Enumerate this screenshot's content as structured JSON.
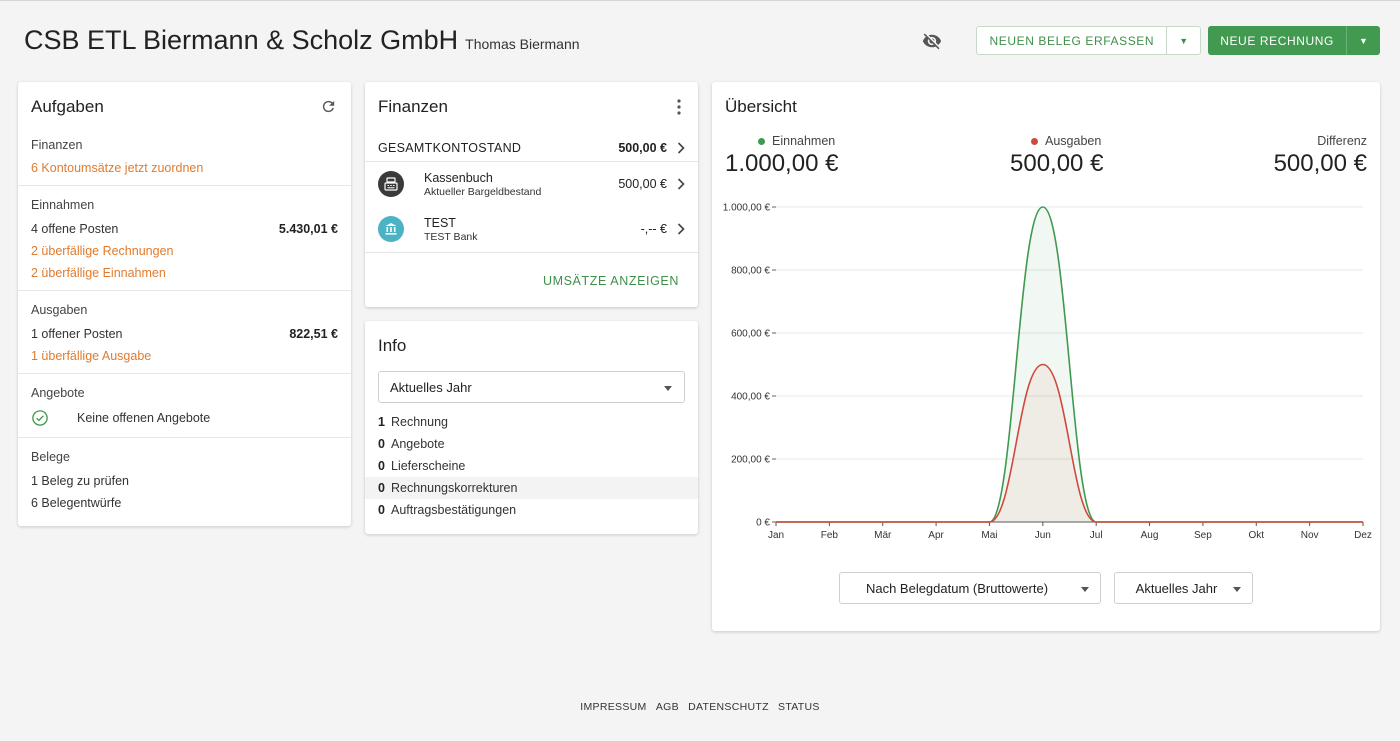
{
  "header": {
    "company": "CSB ETL Biermann & Scholz GmbH",
    "user": "Thomas Biermann",
    "btn_beleg": "NEUEN BELEG ERFASSEN",
    "btn_rechnung": "NEUE RECHNUNG"
  },
  "aufgaben": {
    "title": "Aufgaben",
    "finanzen_head": "Finanzen",
    "finanzen_link": "6 Kontoumsätze jetzt zuordnen",
    "einnahmen_head": "Einnahmen",
    "einnahmen_offen": "4 offene Posten",
    "einnahmen_betrag": "5.430,01 €",
    "einnahmen_link1": "2 überfällige Rechnungen",
    "einnahmen_link2": "2 überfällige Einnahmen",
    "ausgaben_head": "Ausgaben",
    "ausgaben_offen": "1 offener Posten",
    "ausgaben_betrag": "822,51 €",
    "ausgaben_link": "1 überfällige Ausgabe",
    "angebote_head": "Angebote",
    "angebote_text": "Keine offenen Angebote",
    "belege_head": "Belege",
    "belege_pruefen": "1 Beleg zu prüfen",
    "belege_entwuerfe": "6 Belegentwürfe"
  },
  "finanzen": {
    "title": "Finanzen",
    "gesamt_label": "GESAMTKONTOSTAND",
    "gesamt_value": "500,00 €",
    "accounts": [
      {
        "name": "Kassenbuch",
        "sub": "Aktueller Bargeldbestand",
        "value": "500,00 €"
      },
      {
        "name": "TEST",
        "sub": "TEST Bank",
        "value": "-,-- €"
      }
    ],
    "link": "UMSÄTZE ANZEIGEN"
  },
  "info": {
    "title": "Info",
    "select_value": "Aktuelles Jahr",
    "rows": [
      {
        "n": "1",
        "label": "Rechnung"
      },
      {
        "n": "0",
        "label": "Angebote"
      },
      {
        "n": "0",
        "label": "Lieferscheine"
      },
      {
        "n": "0",
        "label": "Rechnungskorrekturen"
      },
      {
        "n": "0",
        "label": "Auftragsbestätigungen"
      }
    ]
  },
  "uebersicht": {
    "title": "Übersicht",
    "einnahmen_label": "Einnahmen",
    "einnahmen_value": "1.000,00 €",
    "ausgaben_label": "Ausgaben",
    "ausgaben_value": "500,00 €",
    "differenz_label": "Differenz",
    "differenz_value": "500,00 €",
    "select_basis": "Nach Belegdatum (Bruttowerte)",
    "select_zeitraum": "Aktuelles Jahr"
  },
  "colors": {
    "einnahmen": "#3f9a4f",
    "ausgaben": "#cf4a3c",
    "accent": "#429950",
    "link": "#e07b2e"
  },
  "chart_data": {
    "type": "area",
    "categories": [
      "Jan",
      "Feb",
      "Mär",
      "Apr",
      "Mai",
      "Jun",
      "Jul",
      "Aug",
      "Sep",
      "Okt",
      "Nov",
      "Dez"
    ],
    "series": [
      {
        "name": "Einnahmen",
        "values": [
          0,
          0,
          0,
          0,
          0,
          1000,
          0,
          0,
          0,
          0,
          0,
          0
        ]
      },
      {
        "name": "Ausgaben",
        "values": [
          0,
          0,
          0,
          0,
          0,
          500,
          0,
          0,
          0,
          0,
          0,
          0
        ]
      }
    ],
    "ylim": [
      0,
      1000
    ],
    "yticks": [
      "0 €",
      "200,00 €",
      "400,00 €",
      "600,00 €",
      "800,00 €",
      "1.000,00 €"
    ],
    "grid": true,
    "legend": "top"
  },
  "footer": {
    "impressum": "IMPRESSUM",
    "agb": "AGB",
    "datenschutz": "DATENSCHUTZ",
    "status": "STATUS"
  }
}
